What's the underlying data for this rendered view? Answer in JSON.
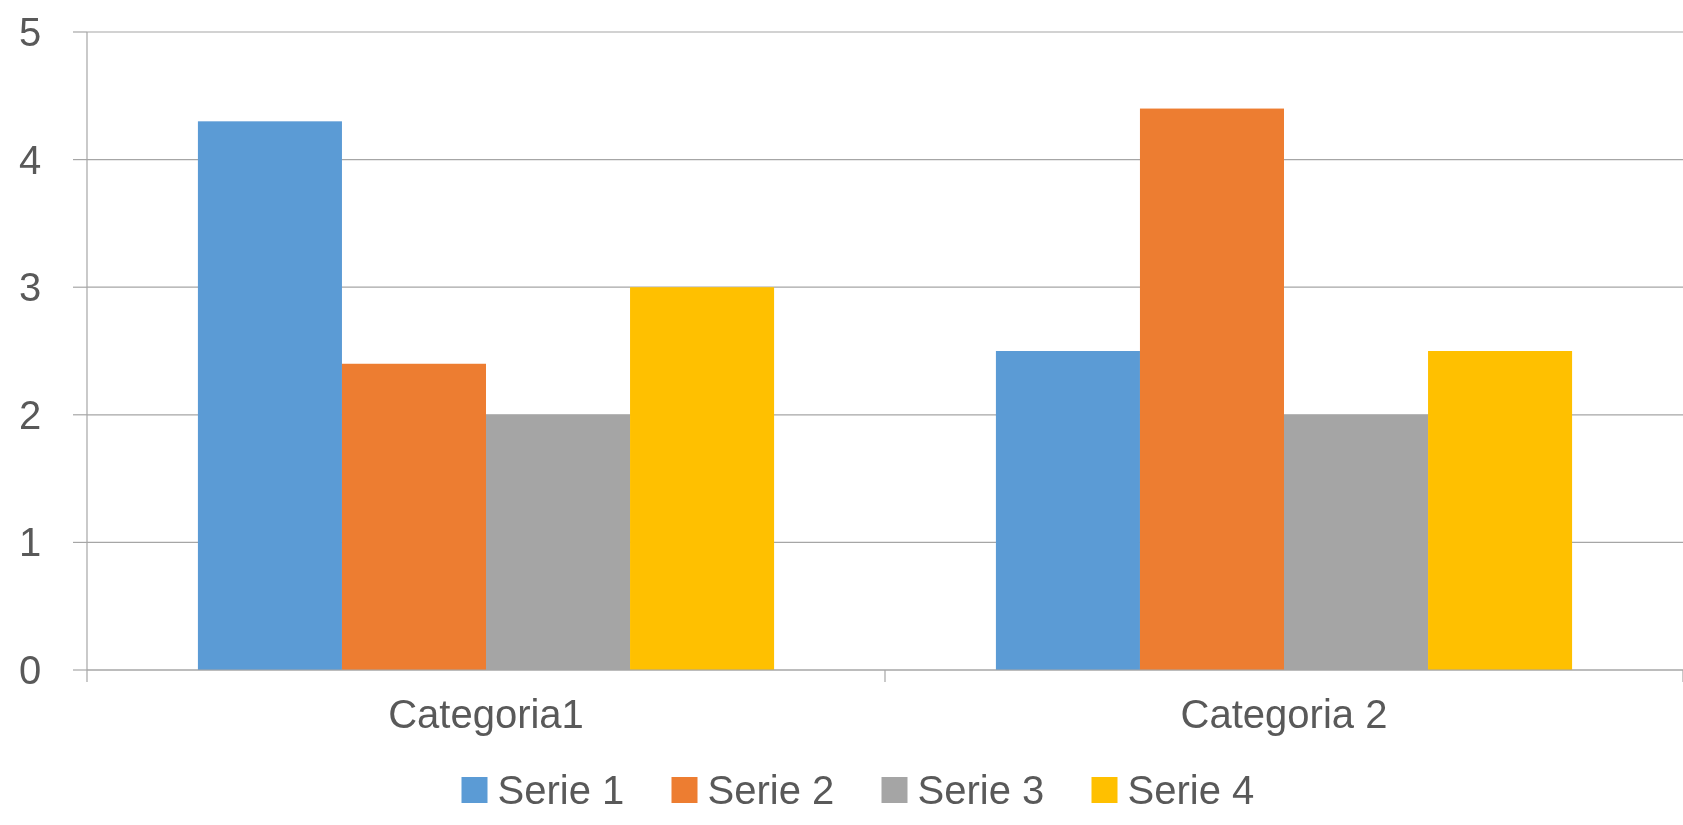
{
  "chart_data": {
    "type": "bar",
    "categories": [
      "Categoria1",
      "Categoria 2"
    ],
    "series": [
      {
        "name": "Serie 1",
        "color": "#5b9bd5",
        "values": [
          4.3,
          2.5
        ]
      },
      {
        "name": "Serie 2",
        "color": "#ed7d31",
        "values": [
          2.4,
          4.4
        ]
      },
      {
        "name": "Serie 3",
        "color": "#a5a5a5",
        "values": [
          2,
          2
        ]
      },
      {
        "name": "Serie 4",
        "color": "#ffc000",
        "values": [
          3,
          2.5
        ]
      }
    ],
    "ylim": [
      0,
      5
    ],
    "yticks": [
      0,
      1,
      2,
      3,
      4,
      5
    ],
    "grid": "y",
    "legend": "bottom"
  }
}
